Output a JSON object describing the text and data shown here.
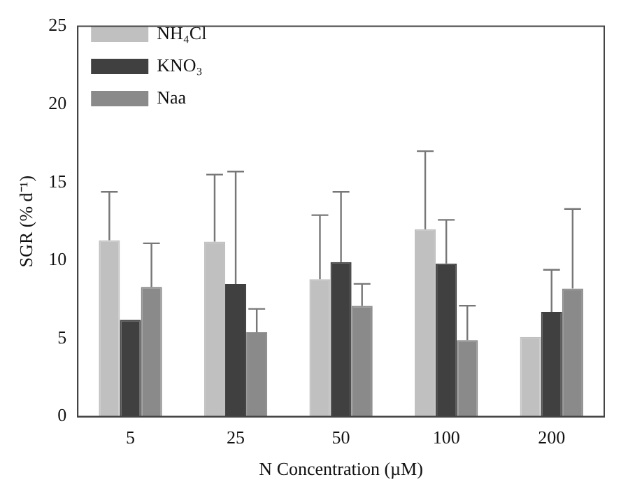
{
  "chart_data": {
    "type": "bar",
    "xlabel": "N Concentration (µM)",
    "ylabel": "SGR (% d⁻¹)",
    "categories": [
      "5",
      "25",
      "50",
      "100",
      "200"
    ],
    "series": [
      {
        "name": "NH₄Cl",
        "color": "#c0c0c0",
        "values": [
          11.3,
          11.2,
          8.8,
          12.0,
          5.1
        ],
        "errors": [
          [
            11.3,
            14.4
          ],
          [
            11.2,
            15.5
          ],
          [
            8.8,
            12.9
          ],
          [
            12.0,
            17.0
          ],
          null
        ]
      },
      {
        "name": "KNO₃",
        "color": "#404040",
        "values": [
          6.2,
          8.5,
          9.9,
          9.8,
          6.7
        ],
        "errors": [
          null,
          [
            8.5,
            15.7
          ],
          [
            9.9,
            14.4
          ],
          [
            9.8,
            12.6
          ],
          [
            6.7,
            9.4
          ]
        ]
      },
      {
        "name": "Naa",
        "color": "#8a8a8a",
        "values": [
          8.3,
          5.4,
          7.1,
          4.9,
          8.2
        ],
        "errors": [
          [
            8.3,
            11.1
          ],
          [
            5.4,
            6.9
          ],
          [
            7.1,
            8.5
          ],
          [
            4.9,
            7.1
          ],
          [
            8.2,
            13.3
          ]
        ]
      }
    ],
    "ylim": [
      0,
      25
    ],
    "yticks": [
      0,
      5,
      10,
      15,
      20,
      25
    ],
    "grid": false,
    "legend": "top left"
  }
}
